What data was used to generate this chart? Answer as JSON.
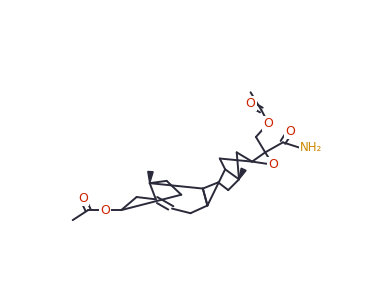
{
  "bg_color": "#ffffff",
  "line_color": "#2a2a3a",
  "O_color": "#cc2200",
  "N_color": "#cc8800",
  "figsize": [
    3.89,
    2.88
  ],
  "dpi": 100,
  "lw": 1.4,
  "xlim": [
    0,
    389
  ],
  "ylim": [
    0,
    288
  ]
}
